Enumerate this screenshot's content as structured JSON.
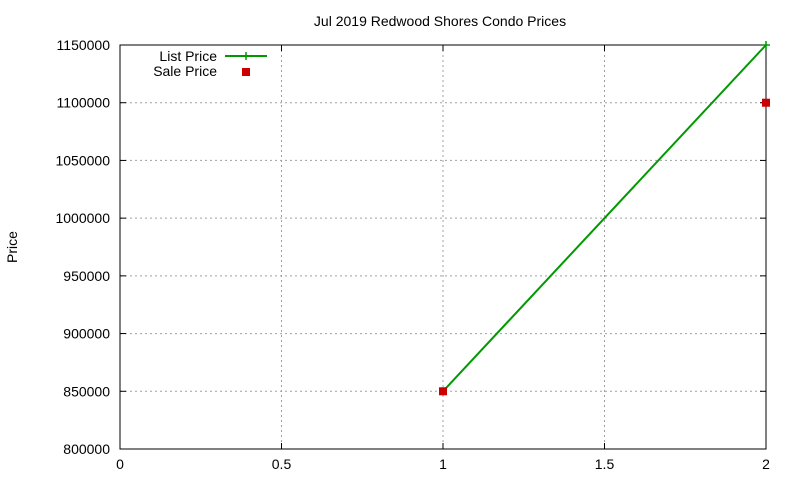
{
  "chart_data": {
    "type": "line",
    "title": "Jul 2019 Redwood Shores Condo Prices",
    "xlabel": "",
    "ylabel": "Price",
    "xlim": [
      0,
      2
    ],
    "ylim": [
      800000,
      1150000
    ],
    "x_ticks": [
      0,
      0.5,
      1,
      1.5,
      2
    ],
    "x_tick_labels": [
      "0",
      "0.5",
      "1",
      "1.5",
      "2"
    ],
    "y_ticks": [
      800000,
      850000,
      900000,
      950000,
      1000000,
      1050000,
      1100000,
      1150000
    ],
    "y_tick_labels": [
      "800000",
      "850000",
      "900000",
      "950000",
      "1000000",
      "1050000",
      "1100000",
      "1150000"
    ],
    "grid": true,
    "legend_position": "top-left",
    "series": [
      {
        "name": "List Price",
        "style": "line with plus markers",
        "color": "#009900",
        "x": [
          1,
          2
        ],
        "values": [
          850000,
          1150000
        ]
      },
      {
        "name": "Sale Price",
        "style": "square markers",
        "color": "#cc0000",
        "x": [
          1,
          2
        ],
        "values": [
          850000,
          1100000
        ]
      }
    ]
  }
}
